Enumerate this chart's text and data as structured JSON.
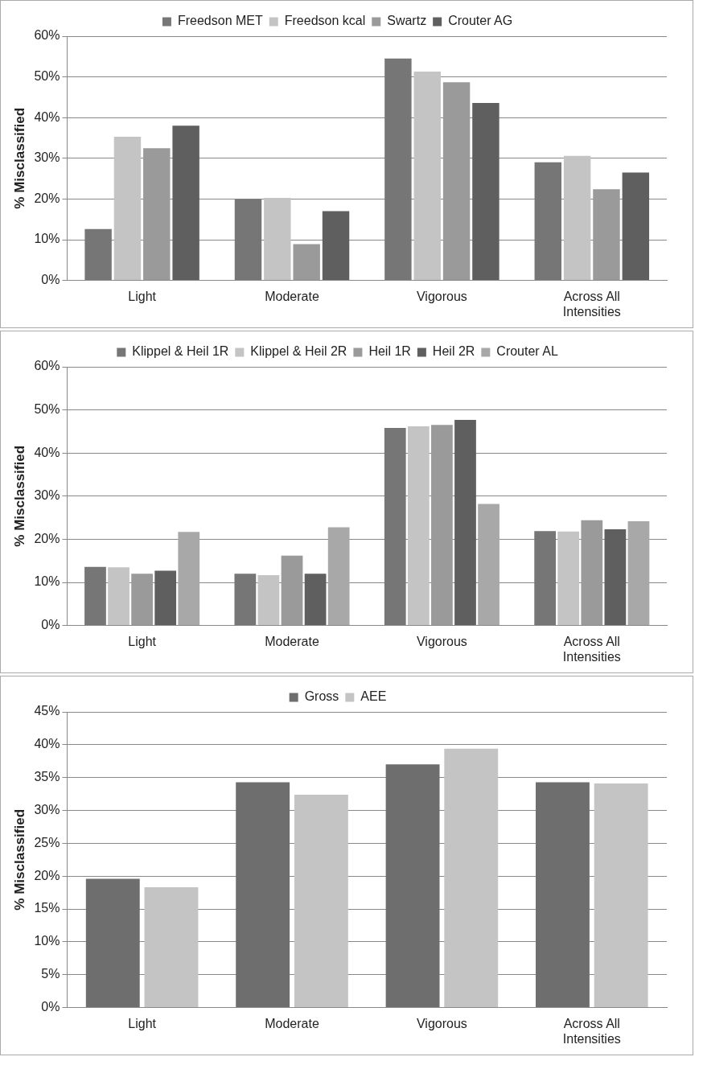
{
  "chart_data": [
    {
      "type": "bar",
      "ylabel": "% Misclassified",
      "categories": [
        "Light",
        "Moderate",
        "Vigorous",
        "Across All Intensities"
      ],
      "series": [
        {
          "name": "Freedson MET",
          "color": "#767676",
          "values": [
            12.6,
            20,
            54.5,
            29
          ]
        },
        {
          "name": "Freedson kcal",
          "color": "#c4c4c4",
          "values": [
            35.3,
            20.3,
            51.3,
            30.6
          ]
        },
        {
          "name": "Swartz",
          "color": "#9a9a9a",
          "values": [
            32.5,
            8.9,
            48.7,
            22.4
          ]
        },
        {
          "name": "Crouter AG",
          "color": "#5f5f5f",
          "values": [
            38,
            17,
            43.6,
            26.5
          ]
        }
      ],
      "ylim": [
        0,
        60
      ],
      "yticks": [
        {
          "value": 0,
          "label": "0%"
        },
        {
          "value": 10,
          "label": "10%"
        },
        {
          "value": 20,
          "label": "20%"
        },
        {
          "value": 30,
          "label": "30%"
        },
        {
          "value": 40,
          "label": "40%"
        },
        {
          "value": 50,
          "label": "50%"
        },
        {
          "value": 60,
          "label": "60%"
        }
      ],
      "grid": "y",
      "legend": "top"
    },
    {
      "type": "bar",
      "ylabel": "% Misclassified",
      "categories": [
        "Light",
        "Moderate",
        "Vigorous",
        "Across All Intensities"
      ],
      "series": [
        {
          "name": "Klippel & Heil 1R",
          "color": "#767676",
          "values": [
            13.6,
            12,
            45.8,
            21.9
          ]
        },
        {
          "name": "Klippel & Heil 2R",
          "color": "#c4c4c4",
          "values": [
            13.5,
            11.7,
            46.2,
            21.8
          ]
        },
        {
          "name": "Heil 1R",
          "color": "#9a9a9a",
          "values": [
            12,
            16.2,
            46.5,
            24.4
          ]
        },
        {
          "name": "Heil 2R",
          "color": "#5f5f5f",
          "values": [
            12.7,
            12,
            47.7,
            22.3
          ]
        },
        {
          "name": "Crouter AL",
          "color": "#a8a8a8",
          "values": [
            21.7,
            22.8,
            28.2,
            24.2
          ]
        }
      ],
      "ylim": [
        0,
        60
      ],
      "yticks": [
        {
          "value": 0,
          "label": "0%"
        },
        {
          "value": 10,
          "label": "10%"
        },
        {
          "value": 20,
          "label": "20%"
        },
        {
          "value": 30,
          "label": "30%"
        },
        {
          "value": 40,
          "label": "40%"
        },
        {
          "value": 50,
          "label": "50%"
        },
        {
          "value": 60,
          "label": "60%"
        }
      ],
      "grid": "y",
      "legend": "top"
    },
    {
      "type": "bar",
      "ylabel": "% Misclassified",
      "categories": [
        "Light",
        "Moderate",
        "Vigorous",
        "Across All Intensities"
      ],
      "series": [
        {
          "name": "Gross",
          "color": "#6e6e6e",
          "values": [
            19.6,
            34.3,
            37,
            34.3
          ]
        },
        {
          "name": "AEE",
          "color": "#c4c4c4",
          "values": [
            18.3,
            32.4,
            39.4,
            34.1
          ]
        }
      ],
      "ylim": [
        0,
        45
      ],
      "yticks": [
        {
          "value": 0,
          "label": "0%"
        },
        {
          "value": 5,
          "label": "5%"
        },
        {
          "value": 10,
          "label": "10%"
        },
        {
          "value": 15,
          "label": "15%"
        },
        {
          "value": 20,
          "label": "20%"
        },
        {
          "value": 25,
          "label": "25%"
        },
        {
          "value": 30,
          "label": "30%"
        },
        {
          "value": 35,
          "label": "35%"
        },
        {
          "value": 40,
          "label": "40%"
        },
        {
          "value": 45,
          "label": "45%"
        }
      ],
      "grid": "y",
      "legend": "top"
    }
  ]
}
